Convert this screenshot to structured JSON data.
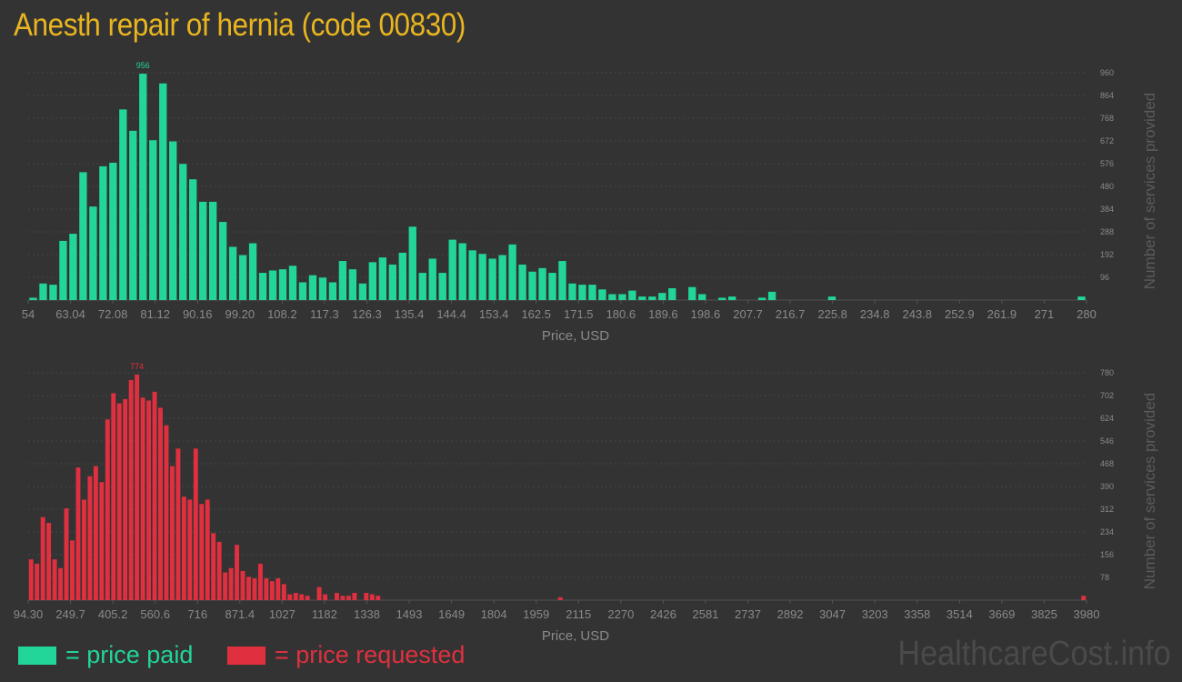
{
  "title": "Anesth repair of hernia (code 00830)",
  "legend": {
    "paid": "= price paid",
    "requested": "= price requested"
  },
  "watermark": "HealthcareCost.info",
  "colors": {
    "paid": "#22d598",
    "requested": "#e0303f",
    "title": "#e8b520",
    "background": "#333333"
  },
  "chart_data": [
    {
      "type": "bar",
      "series": [
        {
          "name": "price paid"
        }
      ],
      "xlabel": "Price, USD",
      "ylabel": "Number of services provided",
      "x_ticks": [
        "54",
        "63.04",
        "72.08",
        "81.12",
        "90.16",
        "99.20",
        "108.2",
        "117.3",
        "126.3",
        "135.4",
        "144.4",
        "153.4",
        "162.5",
        "171.5",
        "180.6",
        "189.6",
        "198.6",
        "207.7",
        "216.7",
        "225.8",
        "234.8",
        "243.8",
        "252.9",
        "261.9",
        "271",
        "280"
      ],
      "y_ticks": [
        96,
        192,
        288,
        384,
        480,
        576,
        672,
        768,
        864,
        960
      ],
      "ylim": [
        0,
        960
      ],
      "peak_label": "956",
      "values": [
        10,
        70,
        65,
        250,
        280,
        540,
        395,
        565,
        580,
        805,
        715,
        956,
        675,
        915,
        670,
        575,
        510,
        415,
        415,
        330,
        225,
        190,
        240,
        115,
        125,
        130,
        145,
        75,
        105,
        95,
        75,
        165,
        130,
        70,
        160,
        180,
        150,
        200,
        310,
        115,
        175,
        115,
        255,
        240,
        210,
        195,
        175,
        190,
        235,
        150,
        120,
        135,
        115,
        165,
        70,
        65,
        65,
        45,
        25,
        25,
        40,
        15,
        15,
        30,
        50,
        0,
        55,
        25,
        0,
        10,
        15,
        0,
        0,
        10,
        35,
        0,
        0,
        0,
        0,
        0,
        15,
        0,
        0,
        0,
        0,
        0,
        0,
        0,
        0,
        0,
        0,
        0,
        0,
        0,
        0,
        0,
        0,
        0,
        0,
        0,
        0,
        0,
        0,
        0,
        0,
        15
      ]
    },
    {
      "type": "bar",
      "series": [
        {
          "name": "price requested"
        }
      ],
      "xlabel": "Price, USD",
      "ylabel": "Number of services provided",
      "x_ticks": [
        "94.30",
        "249.7",
        "405.2",
        "560.6",
        "716",
        "871.4",
        "1027",
        "1182",
        "1338",
        "1493",
        "1649",
        "1804",
        "1959",
        "2115",
        "2270",
        "2426",
        "2581",
        "2737",
        "2892",
        "3047",
        "3203",
        "3358",
        "3514",
        "3669",
        "3825",
        "3980"
      ],
      "y_ticks": [
        78,
        156,
        234,
        312,
        390,
        468,
        546,
        624,
        702,
        780
      ],
      "ylim": [
        0,
        780
      ],
      "peak_label": "774",
      "values": [
        140,
        125,
        285,
        265,
        140,
        110,
        315,
        205,
        455,
        345,
        425,
        460,
        405,
        620,
        710,
        675,
        690,
        755,
        774,
        695,
        685,
        715,
        660,
        600,
        460,
        520,
        355,
        345,
        520,
        330,
        345,
        230,
        200,
        95,
        110,
        190,
        100,
        80,
        75,
        125,
        75,
        65,
        75,
        55,
        20,
        25,
        20,
        15,
        0,
        45,
        20,
        0,
        25,
        15,
        15,
        25,
        0,
        25,
        20,
        15,
        0,
        0,
        0,
        0,
        0,
        0,
        0,
        0,
        0,
        0,
        0,
        0,
        0,
        0,
        0,
        0,
        0,
        0,
        0,
        0,
        0,
        0,
        0,
        0,
        0,
        0,
        0,
        0,
        0,
        0,
        10,
        0,
        0,
        0,
        0,
        0,
        0,
        0,
        0,
        0,
        0,
        0,
        0,
        0,
        0,
        0,
        0,
        0,
        0,
        0,
        0,
        0,
        0,
        0,
        0,
        0,
        0,
        0,
        0,
        0,
        0,
        0,
        0,
        0,
        0,
        0,
        0,
        0,
        0,
        0,
        0,
        0,
        0,
        0,
        0,
        0,
        0,
        0,
        0,
        0,
        0,
        0,
        0,
        0,
        0,
        0,
        0,
        0,
        0,
        0,
        0,
        0,
        0,
        0,
        0,
        0,
        0,
        0,
        0,
        0,
        0,
        0,
        0,
        0,
        0,
        0,
        0,
        0,
        0,
        0,
        0,
        0,
        0,
        0,
        0,
        0,
        0,
        0,
        0,
        15
      ]
    }
  ]
}
